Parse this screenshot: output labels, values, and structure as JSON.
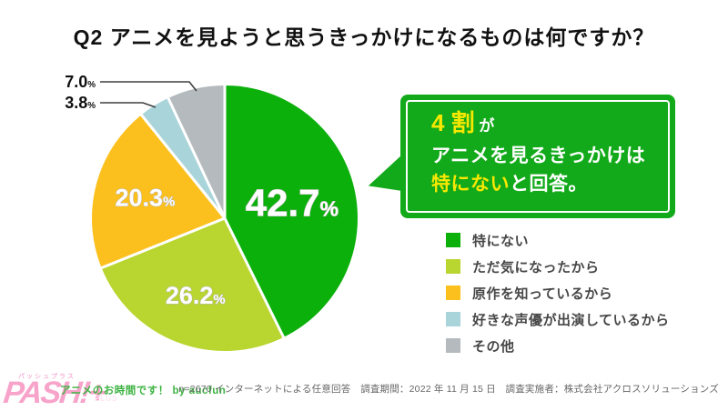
{
  "title": "Q2  アニメを見ようと思うきっかけになるものは何ですか？",
  "chart_data": {
    "type": "pie",
    "title": "Q2 アニメを見ようと思うきっかけになるものは何ですか？",
    "labels": [
      "特にない",
      "ただ気になったから",
      "原作を知っているから",
      "好きな声優が出演しているから",
      "その他"
    ],
    "values": [
      42.7,
      26.2,
      20.3,
      3.8,
      7.0
    ],
    "value_labels": [
      "42.7%",
      "26.2%",
      "20.3%",
      "3.8%",
      "7.0%"
    ],
    "colors": [
      "#0bb00b",
      "#b9d52f",
      "#fcc01e",
      "#a9d4da",
      "#b4babd"
    ],
    "start_angle": "12-oclock",
    "direction": "clockwise",
    "legend_position": "right",
    "slice_label_style": [
      "inside",
      "inside",
      "inside",
      "leader-line-left",
      "leader-line-left"
    ]
  },
  "callout": {
    "line1_highlight": "4 割",
    "line1_rest": " が",
    "line2": "アニメを見るきっかけは",
    "line3_highlight": "特にない",
    "line3_rest": "と回答。",
    "bg_color": "#12aa1a",
    "highlight_color": "#f8e800"
  },
  "footer": {
    "logo_kana": "パッシュプラス",
    "logo_text": "PASH!+",
    "logo_plus_label": "PLUS",
    "credit": "アニメのお時間です！ by aucfun",
    "survey_note": "n=2670 インターネットによる任意回答　調査期間：2022 年 11 月 15 日　調査実施者：株式会社アクロスソリューションズ"
  }
}
